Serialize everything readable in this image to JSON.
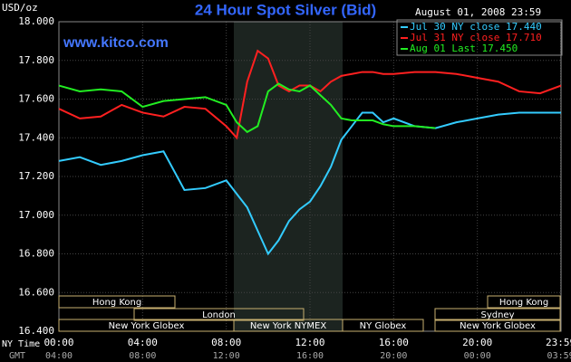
{
  "chart_data": {
    "type": "line",
    "title": "24 Hour Spot Silver (Bid)",
    "date": "August 01, 2008 23:59",
    "y_unit": "USD/oz",
    "watermark": "www.kitco.com",
    "x": [
      0,
      1,
      2,
      3,
      4,
      5,
      6,
      7,
      8,
      8.5,
      9,
      9.5,
      10,
      10.5,
      11,
      11.5,
      12,
      12.5,
      13,
      13.5,
      14,
      14.5,
      15,
      15.5,
      16,
      17,
      18,
      19,
      20,
      21,
      22,
      23,
      24
    ],
    "series": [
      {
        "name": "Jul 30 NY close 17.440",
        "color": "#33ccff",
        "values": [
          17.28,
          17.3,
          17.26,
          17.28,
          17.31,
          17.33,
          17.13,
          17.14,
          17.18,
          17.11,
          17.04,
          16.92,
          16.8,
          16.87,
          16.97,
          17.03,
          17.07,
          17.15,
          17.25,
          17.39,
          17.46,
          17.53,
          17.53,
          17.48,
          17.5,
          17.46,
          17.45,
          17.48,
          17.5,
          17.52,
          17.53,
          17.53,
          17.53
        ]
      },
      {
        "name": "Jul 31 NY close 17.710",
        "color": "#ff2020",
        "values": [
          17.55,
          17.5,
          17.51,
          17.57,
          17.53,
          17.51,
          17.56,
          17.55,
          17.46,
          17.4,
          17.69,
          17.85,
          17.81,
          17.67,
          17.64,
          17.67,
          17.67,
          17.64,
          17.69,
          17.72,
          17.73,
          17.74,
          17.74,
          17.73,
          17.73,
          17.74,
          17.74,
          17.73,
          17.71,
          17.69,
          17.64,
          17.63,
          17.67
        ]
      },
      {
        "name": "Aug 01 Last 17.450",
        "color": "#22ee22",
        "values": [
          17.67,
          17.64,
          17.65,
          17.64,
          17.56,
          17.59,
          17.6,
          17.61,
          17.57,
          17.48,
          17.43,
          17.46,
          17.64,
          17.68,
          17.65,
          17.64,
          17.67,
          17.62,
          17.57,
          17.5,
          17.49,
          17.49,
          17.49,
          17.47,
          17.46,
          17.46,
          17.45,
          null,
          null,
          null,
          null,
          null,
          null
        ]
      }
    ],
    "xlim": [
      0,
      24
    ],
    "ylim": [
      16.4,
      18.0
    ],
    "yticks": [
      {
        "value": 16.4,
        "label": "16.400"
      },
      {
        "value": 16.6,
        "label": "16.600"
      },
      {
        "value": 16.8,
        "label": "16.800"
      },
      {
        "value": 17.0,
        "label": "17.000"
      },
      {
        "value": 17.2,
        "label": "17.200"
      },
      {
        "value": 17.4,
        "label": "17.400"
      },
      {
        "value": 17.6,
        "label": "17.600"
      },
      {
        "value": 17.8,
        "label": "17.800"
      },
      {
        "value": 18.0,
        "label": "18.000"
      }
    ],
    "xticks": [
      {
        "value": 0,
        "label": "00:00"
      },
      {
        "value": 4,
        "label": "04:00"
      },
      {
        "value": 8,
        "label": "08:00"
      },
      {
        "value": 12,
        "label": "12:00"
      },
      {
        "value": 16,
        "label": "16:00"
      },
      {
        "value": 20,
        "label": "20:00"
      },
      {
        "value": 23.983,
        "label": "23:59"
      }
    ],
    "gmt_labels": [
      "04:00",
      "08:00",
      "12:00",
      "16:00",
      "20:00",
      "00:00",
      "03:59"
    ],
    "x_row_labels": [
      "NY Time",
      "GMT"
    ],
    "sessions": [
      "Hong Kong",
      "London",
      "New York Globex",
      "New York NYMEX",
      "NY Globex",
      "Sydney",
      "Hong Kong",
      "New York Globex"
    ],
    "grid": true
  }
}
